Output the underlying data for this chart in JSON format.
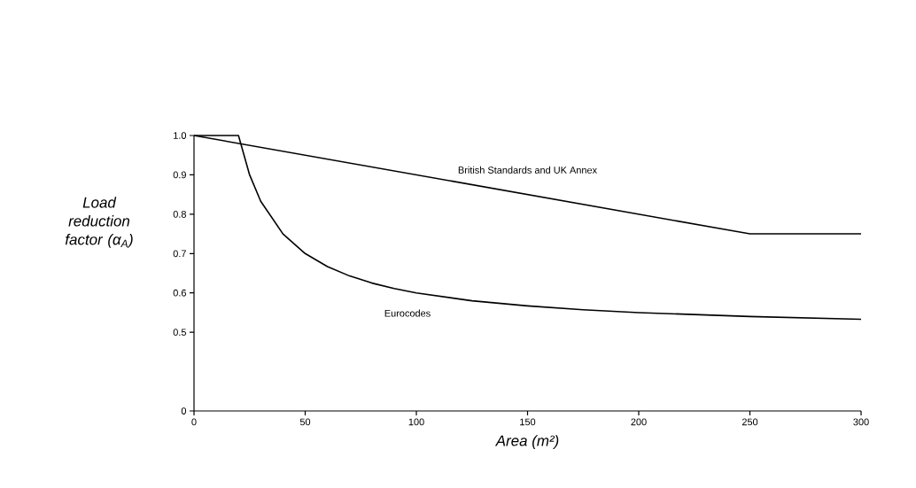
{
  "chart_data": {
    "type": "line",
    "xlabel": "Area (m²)",
    "ylabel": "Load reduction factor (α$_{A}$)",
    "xlim": [
      0,
      300
    ],
    "xticks": [
      0,
      50,
      100,
      150,
      200,
      250,
      300
    ],
    "ylim": [
      0.3,
      1.0
    ],
    "yticks": [
      {
        "value": 0.3,
        "label": "0"
      },
      0.5,
      0.6,
      0.7,
      0.8,
      0.9,
      {
        "value": 1.0,
        "label": "1.0"
      }
    ],
    "grid": false,
    "marker": "none",
    "line_style": "solid",
    "series": [
      {
        "color": "#000000",
        "x": [
          0,
          250,
          300
        ],
        "values": [
          1.0,
          0.75,
          0.75
        ]
      },
      {
        "color": "#000000",
        "x": [
          0,
          20,
          25,
          30,
          40,
          50,
          60,
          70,
          80,
          90,
          100,
          125,
          150,
          175,
          200,
          250,
          300
        ],
        "values": [
          1.0,
          1.0,
          0.9,
          0.833,
          0.75,
          0.7,
          0.667,
          0.643,
          0.625,
          0.611,
          0.6,
          0.58,
          0.567,
          0.557,
          0.55,
          0.54,
          0.533
        ]
      }
    ],
    "annotations": [
      "British Standards and UK Annex",
      "Eurocodes"
    ]
  }
}
